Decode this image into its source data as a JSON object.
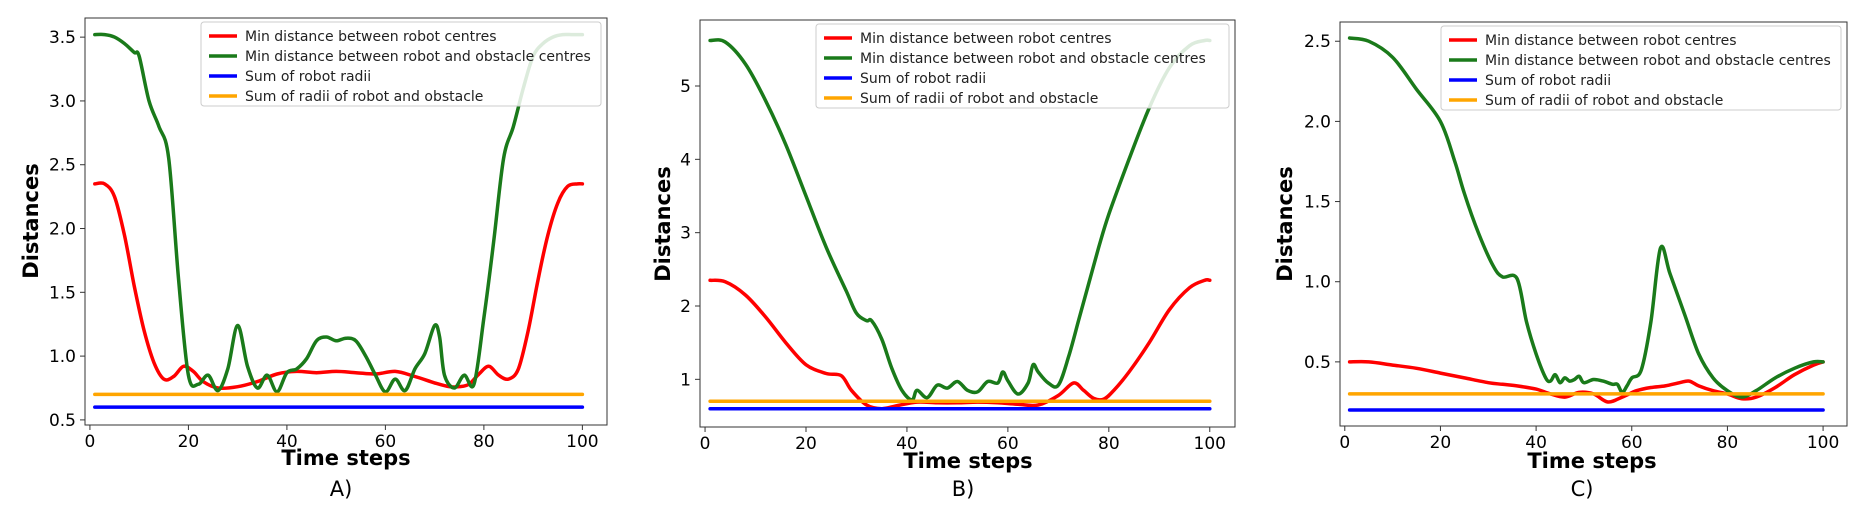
{
  "legend_labels": [
    "Min distance between robot centres",
    "Min distance between robot and obstacle centres",
    "Sum of robot radii",
    "Sum of radii of robot and obstacle"
  ],
  "colors": {
    "red": "#ff0000",
    "green": "#1a7a1a",
    "blue": "#0000ff",
    "orange": "#ffa500"
  },
  "chart_data": [
    {
      "type": "line",
      "caption": "A)",
      "xlabel": "Time steps",
      "ylabel": "Distances",
      "xlim": [
        -1,
        105
      ],
      "ylim": [
        0.46,
        3.65
      ],
      "xticks": [
        0,
        20,
        40,
        60,
        80,
        100
      ],
      "yticks": [
        0.5,
        1.0,
        1.5,
        2.0,
        2.5,
        3.0,
        3.5
      ],
      "ytick_labels": [
        "0.5",
        "1.0",
        "1.5",
        "2.0",
        "2.5",
        "3.0",
        "3.5"
      ],
      "legend_position": "top-right",
      "series": [
        {
          "name": "Min distance between robot centres",
          "color": "#ff0000",
          "x": [
            1,
            3,
            5,
            7,
            9,
            11,
            13,
            15,
            17,
            19,
            21,
            23,
            26,
            30,
            34,
            38,
            42,
            46,
            50,
            54,
            58,
            62,
            66,
            70,
            73,
            75,
            77,
            79,
            81,
            83,
            85,
            87,
            89,
            91,
            93,
            95,
            97,
            99,
            100
          ],
          "y": [
            2.35,
            2.35,
            2.25,
            1.95,
            1.55,
            1.2,
            0.95,
            0.82,
            0.84,
            0.92,
            0.88,
            0.8,
            0.75,
            0.76,
            0.8,
            0.86,
            0.88,
            0.87,
            0.88,
            0.87,
            0.86,
            0.88,
            0.84,
            0.79,
            0.76,
            0.76,
            0.78,
            0.86,
            0.92,
            0.85,
            0.82,
            0.9,
            1.2,
            1.6,
            1.95,
            2.2,
            2.33,
            2.35,
            2.35
          ]
        },
        {
          "name": "Min distance between robot and obstacle centres",
          "color": "#1a7a1a",
          "x": [
            1,
            3,
            5,
            7,
            9,
            10,
            12,
            14,
            16,
            18,
            20,
            22,
            24,
            26,
            28,
            30,
            32,
            34,
            36,
            38,
            40,
            42,
            44,
            46,
            48,
            50,
            52,
            54,
            56,
            58,
            60,
            62,
            64,
            66,
            68,
            70,
            71,
            72,
            74,
            76,
            78,
            80,
            82,
            84,
            86,
            88,
            90,
            92,
            94,
            96,
            98,
            100
          ],
          "y": [
            3.52,
            3.52,
            3.5,
            3.45,
            3.38,
            3.35,
            3.0,
            2.8,
            2.55,
            1.6,
            0.85,
            0.78,
            0.85,
            0.73,
            0.9,
            1.24,
            0.92,
            0.75,
            0.85,
            0.72,
            0.87,
            0.9,
            0.98,
            1.12,
            1.15,
            1.12,
            1.14,
            1.12,
            1.0,
            0.85,
            0.72,
            0.82,
            0.73,
            0.9,
            1.02,
            1.24,
            1.15,
            0.85,
            0.75,
            0.85,
            0.78,
            1.3,
            1.9,
            2.55,
            2.8,
            3.1,
            3.35,
            3.45,
            3.5,
            3.52,
            3.52,
            3.52
          ]
        },
        {
          "name": "Sum of robot radii",
          "color": "#0000ff",
          "x": [
            1,
            100
          ],
          "y": [
            0.6,
            0.6
          ]
        },
        {
          "name": "Sum of radii of robot and obstacle",
          "color": "#ffa500",
          "x": [
            1,
            100
          ],
          "y": [
            0.7,
            0.7
          ]
        }
      ]
    },
    {
      "type": "line",
      "caption": "B)",
      "xlabel": "Time steps",
      "ylabel": "Distances",
      "xlim": [
        -1,
        105
      ],
      "ylim": [
        0.35,
        5.9
      ],
      "xticks": [
        0,
        20,
        40,
        60,
        80,
        100
      ],
      "yticks": [
        1,
        2,
        3,
        4,
        5
      ],
      "ytick_labels": [
        "1",
        "2",
        "3",
        "4",
        "5"
      ],
      "legend_position": "top-right",
      "series": [
        {
          "name": "Min distance between robot centres",
          "color": "#ff0000",
          "x": [
            1,
            4,
            8,
            12,
            16,
            20,
            24,
            27,
            29,
            32,
            35,
            38,
            42,
            46,
            50,
            54,
            58,
            62,
            66,
            70,
            73,
            75,
            77,
            79,
            81,
            84,
            88,
            92,
            96,
            99,
            100
          ],
          "y": [
            2.35,
            2.33,
            2.15,
            1.85,
            1.5,
            1.2,
            1.08,
            1.05,
            0.85,
            0.65,
            0.6,
            0.64,
            0.69,
            0.68,
            0.68,
            0.69,
            0.68,
            0.66,
            0.65,
            0.78,
            0.95,
            0.85,
            0.74,
            0.73,
            0.85,
            1.1,
            1.5,
            1.95,
            2.25,
            2.35,
            2.35
          ]
        },
        {
          "name": "Min distance between robot and obstacle centres",
          "color": "#1a7a1a",
          "x": [
            1,
            4,
            8,
            12,
            16,
            20,
            24,
            28,
            30,
            32,
            33,
            35,
            37,
            39,
            41,
            42,
            44,
            46,
            48,
            50,
            52,
            54,
            56,
            58,
            59,
            60,
            62,
            64,
            65,
            66,
            68,
            70,
            72,
            74,
            76,
            78,
            80,
            84,
            88,
            92,
            96,
            99,
            100
          ],
          "y": [
            5.62,
            5.6,
            5.3,
            4.8,
            4.2,
            3.5,
            2.8,
            2.2,
            1.9,
            1.8,
            1.8,
            1.55,
            1.15,
            0.85,
            0.72,
            0.85,
            0.75,
            0.92,
            0.88,
            0.97,
            0.85,
            0.83,
            0.97,
            0.95,
            1.1,
            0.98,
            0.8,
            0.95,
            1.2,
            1.1,
            0.95,
            0.92,
            1.3,
            1.8,
            2.3,
            2.8,
            3.25,
            4.0,
            4.7,
            5.25,
            5.55,
            5.62,
            5.62
          ]
        },
        {
          "name": "Sum of robot radii",
          "color": "#0000ff",
          "x": [
            1,
            100
          ],
          "y": [
            0.6,
            0.6
          ]
        },
        {
          "name": "Sum of radii of robot and obstacle",
          "color": "#ffa500",
          "x": [
            1,
            100
          ],
          "y": [
            0.7,
            0.7
          ]
        }
      ]
    },
    {
      "type": "line",
      "caption": "C)",
      "xlabel": "Time steps",
      "ylabel": "Distances",
      "xlim": [
        -1,
        105
      ],
      "ylim": [
        0.1,
        2.62
      ],
      "xticks": [
        0,
        20,
        40,
        60,
        80,
        100
      ],
      "yticks": [
        0.5,
        1.0,
        1.5,
        2.0,
        2.5
      ],
      "ytick_labels": [
        "0.5",
        "1.0",
        "1.5",
        "2.0",
        "2.5"
      ],
      "legend_position": "top-right",
      "series": [
        {
          "name": "Min distance between robot centres",
          "color": "#ff0000",
          "x": [
            1,
            5,
            10,
            15,
            20,
            25,
            30,
            33,
            36,
            40,
            43,
            46,
            49,
            52,
            55,
            58,
            61,
            64,
            67,
            70,
            72,
            74,
            77,
            80,
            83,
            86,
            90,
            94,
            98,
            100
          ],
          "y": [
            0.5,
            0.5,
            0.48,
            0.46,
            0.43,
            0.4,
            0.37,
            0.36,
            0.35,
            0.33,
            0.3,
            0.28,
            0.31,
            0.3,
            0.25,
            0.28,
            0.32,
            0.34,
            0.35,
            0.37,
            0.38,
            0.35,
            0.32,
            0.3,
            0.27,
            0.28,
            0.34,
            0.42,
            0.48,
            0.5
          ]
        },
        {
          "name": "Min distance between robot and obstacle centres",
          "color": "#1a7a1a",
          "x": [
            1,
            5,
            10,
            15,
            20,
            23,
            25,
            28,
            31,
            33,
            36,
            38,
            40,
            42,
            43,
            44,
            45,
            46,
            47,
            48,
            49,
            50,
            52,
            54,
            56,
            57,
            58,
            59,
            60,
            62,
            64,
            66,
            68,
            71,
            74,
            77,
            80,
            83,
            86,
            90,
            94,
            98,
            100
          ],
          "y": [
            2.52,
            2.5,
            2.4,
            2.2,
            2.0,
            1.75,
            1.55,
            1.3,
            1.1,
            1.03,
            1.02,
            0.75,
            0.55,
            0.4,
            0.38,
            0.42,
            0.37,
            0.4,
            0.38,
            0.39,
            0.41,
            0.37,
            0.39,
            0.38,
            0.36,
            0.36,
            0.31,
            0.35,
            0.4,
            0.45,
            0.75,
            1.21,
            1.05,
            0.8,
            0.55,
            0.4,
            0.32,
            0.28,
            0.32,
            0.4,
            0.46,
            0.5,
            0.5
          ]
        },
        {
          "name": "Sum of robot radii",
          "color": "#0000ff",
          "x": [
            1,
            100
          ],
          "y": [
            0.2,
            0.2
          ]
        },
        {
          "name": "Sum of radii of robot and obstacle",
          "color": "#ffa500",
          "x": [
            1,
            100
          ],
          "y": [
            0.3,
            0.3
          ]
        }
      ]
    }
  ]
}
